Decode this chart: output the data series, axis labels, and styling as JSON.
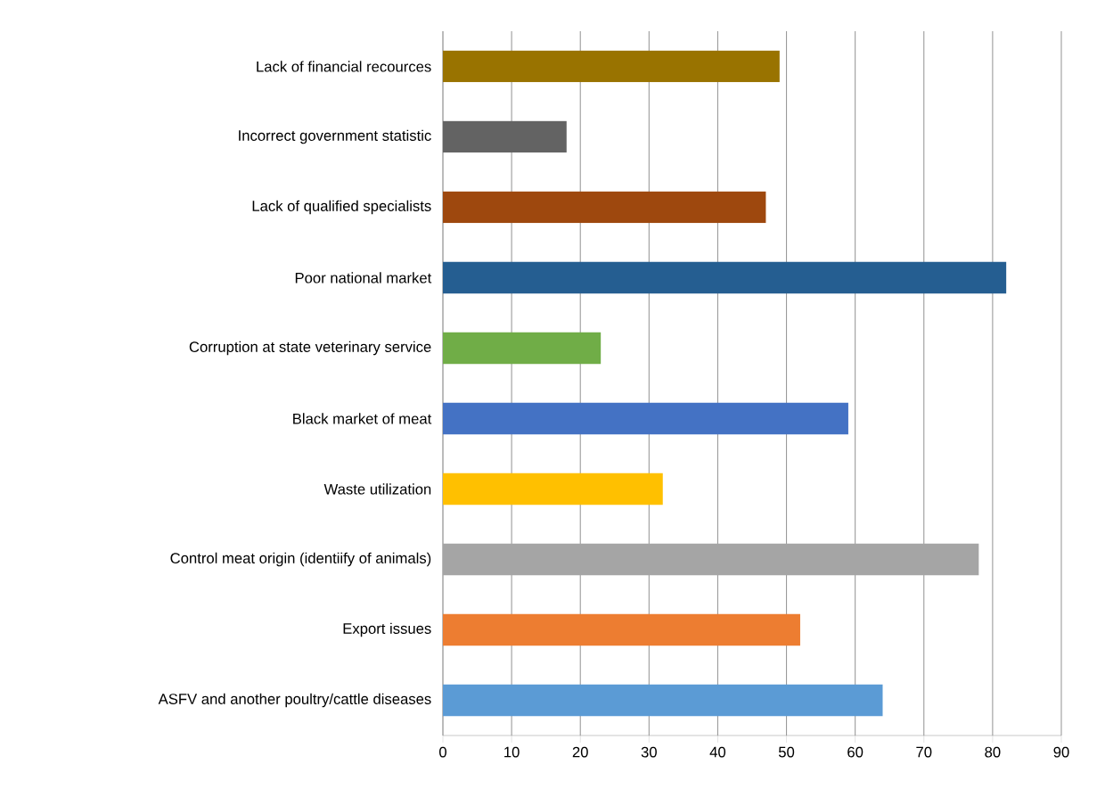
{
  "chart_data": {
    "type": "bar",
    "orientation": "horizontal",
    "categories": [
      "Lack of financial recources",
      "Incorrect government statistic",
      "Lack of qualified specialists",
      "Poor national market",
      "Corruption at state veterinary service",
      "Black market of meat",
      "Waste utilization",
      "Control meat origin (identiify of animals)",
      "Export issues",
      "ASFV and another poultry/cattle diseases"
    ],
    "values": [
      49,
      18,
      47,
      82,
      23,
      59,
      32,
      78,
      52,
      64
    ],
    "colors": [
      "#997300",
      "#636363",
      "#9e480e",
      "#255e91",
      "#70ad47",
      "#4472c4",
      "#ffc000",
      "#a5a5a5",
      "#ed7d31",
      "#5b9bd5"
    ],
    "xlim": [
      0,
      90
    ],
    "xticks": [
      0,
      10,
      20,
      30,
      40,
      50,
      60,
      70,
      80,
      90
    ],
    "grid": "x"
  }
}
